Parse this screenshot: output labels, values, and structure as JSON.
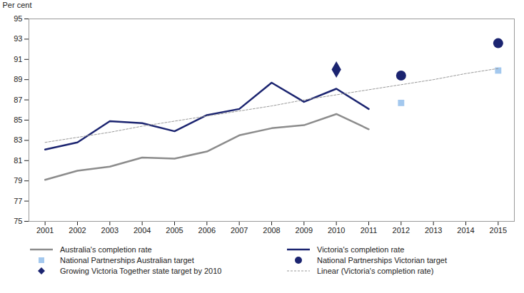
{
  "chart_data": {
    "type": "line",
    "y_label": "Per cent",
    "x": [
      2001,
      2002,
      2003,
      2004,
      2005,
      2006,
      2007,
      2008,
      2009,
      2010,
      2011,
      2012,
      2013,
      2014,
      2015
    ],
    "xlim": [
      2000.5,
      2015.5
    ],
    "xticks": [
      2001,
      2002,
      2003,
      2004,
      2005,
      2006,
      2007,
      2008,
      2009,
      2010,
      2011,
      2012,
      2013,
      2014,
      2015
    ],
    "ylim": [
      75,
      95
    ],
    "yticks": [
      75,
      77,
      79,
      81,
      83,
      85,
      87,
      89,
      91,
      93,
      95
    ],
    "grid": false,
    "legend": "bottom",
    "series": [
      {
        "name": "Australia's completion rate",
        "type": "line",
        "color": "#8c8c8c",
        "line_style": "solid",
        "values": [
          79.1,
          80.0,
          80.4,
          81.3,
          81.2,
          81.9,
          83.5,
          84.2,
          84.5,
          85.6,
          84.1,
          null,
          null,
          null,
          null
        ]
      },
      {
        "name": "Victoria's completion rate",
        "type": "line",
        "color": "#1b2470",
        "line_style": "solid",
        "values": [
          82.1,
          82.8,
          84.9,
          84.7,
          83.9,
          85.5,
          86.1,
          88.7,
          86.8,
          88.1,
          86.1,
          null,
          null,
          null,
          null
        ]
      },
      {
        "name": "National Partnerships Australian target",
        "type": "scatter",
        "color": "#a3c8ee",
        "marker": "square",
        "values": [
          null,
          null,
          null,
          null,
          null,
          null,
          null,
          null,
          null,
          null,
          null,
          86.7,
          null,
          null,
          89.9
        ]
      },
      {
        "name": "National Partnerships Victorian target",
        "type": "scatter",
        "color": "#1b2470",
        "marker": "circle",
        "values": [
          null,
          null,
          null,
          null,
          null,
          null,
          null,
          null,
          null,
          null,
          null,
          89.4,
          null,
          null,
          92.6
        ]
      },
      {
        "name": "Growing Victoria Together state target by 2010",
        "type": "scatter",
        "color": "#1b2470",
        "marker": "diamond",
        "values": [
          null,
          null,
          null,
          null,
          null,
          null,
          null,
          null,
          null,
          90.0,
          null,
          null,
          null,
          null,
          null
        ]
      },
      {
        "name": "Linear (Victoria's completion rate)",
        "type": "line",
        "color": "#999999",
        "line_style": "dashed",
        "values": [
          82.8,
          83.3,
          83.8,
          84.4,
          84.9,
          85.4,
          85.9,
          86.4,
          87.0,
          87.5,
          88.0,
          88.5,
          89.0,
          89.6,
          90.1
        ]
      }
    ]
  }
}
